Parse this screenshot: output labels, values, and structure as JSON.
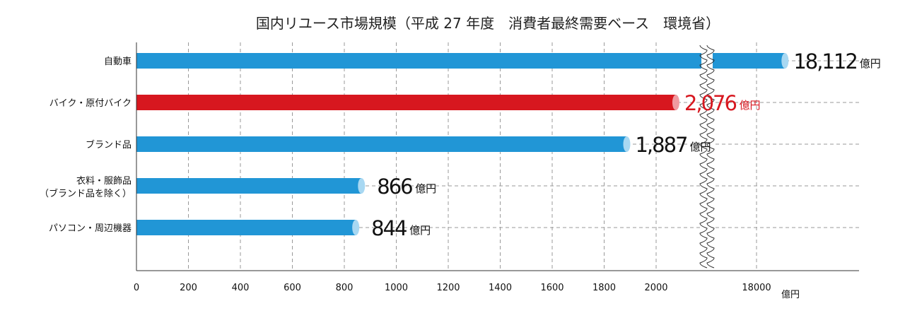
{
  "chart_data": {
    "type": "bar",
    "orientation": "horizontal",
    "title": "国内リユース市場規模（平成 27 年度　消費者最終需要ベース　環境省）",
    "categories": [
      {
        "label": [
          "自動車"
        ],
        "value": 18112,
        "value_label": "18,112",
        "highlight": false
      },
      {
        "label": [
          "バイク・原付バイク"
        ],
        "value": 2076,
        "value_label": "2,076",
        "highlight": true
      },
      {
        "label": [
          "ブランド品"
        ],
        "value": 1887,
        "value_label": "1,887",
        "highlight": false
      },
      {
        "label": [
          "衣料・服飾品",
          "（ブランド品を除く）"
        ],
        "value": 866,
        "value_label": "866",
        "highlight": false
      },
      {
        "label": [
          "パソコン・周辺機器"
        ],
        "value": 844,
        "value_label": "844",
        "highlight": false
      }
    ],
    "value_unit": "億円",
    "x_ticks": [
      "0",
      "200",
      "400",
      "600",
      "800",
      "1000",
      "1200",
      "1400",
      "1600",
      "1800",
      "2000",
      "18000"
    ],
    "x_unit": "億円",
    "axis_break": {
      "from": 2100,
      "to": 17600
    },
    "xlim": [
      0,
      18500
    ],
    "grid": true,
    "colors": {
      "bar": "#2196d6",
      "bar_cap": "#a8d8f2",
      "highlight": "#d7171f",
      "highlight_cap": "#f09aa0",
      "grid": "#999999",
      "axis": "#333333",
      "label": "#111111",
      "highlight_label": "#d7171f"
    }
  }
}
